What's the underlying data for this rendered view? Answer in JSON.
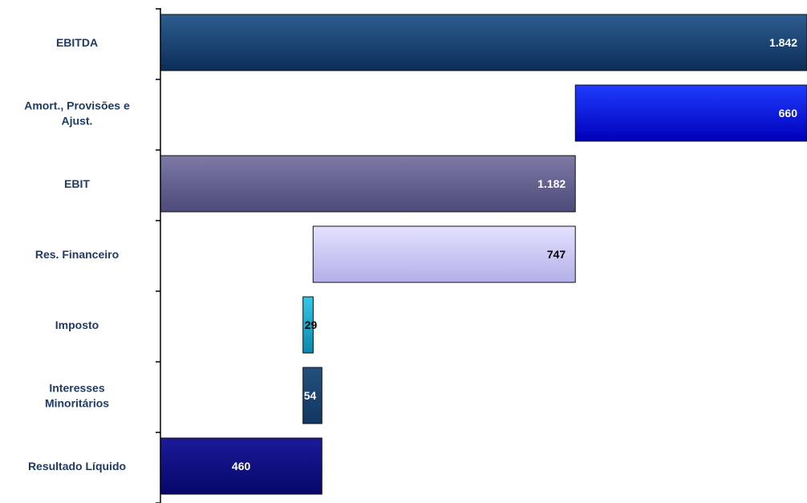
{
  "chart_data": {
    "type": "bar",
    "orientation": "horizontal",
    "subtype": "waterfall",
    "categories": [
      [
        "EBITDA"
      ],
      [
        "Amort., Provisões e",
        "Ajust."
      ],
      [
        "EBIT"
      ],
      [
        "Res. Financeiro"
      ],
      [
        "Imposto"
      ],
      [
        "Interesses",
        "Minoritários"
      ],
      [
        "Resultado Líquido"
      ]
    ],
    "values": [
      1842,
      660,
      1182,
      747,
      29,
      54,
      460
    ],
    "value_labels": [
      "1.842",
      "660",
      "1.182",
      "747",
      "29",
      "54",
      "460"
    ],
    "bar_start": [
      0,
      1182,
      0,
      435,
      406,
      406,
      0
    ],
    "bar_end": [
      1842,
      1842,
      1182,
      1182,
      435,
      460,
      460
    ],
    "bar_colors": [
      {
        "light": "#2d5d91",
        "dark": "#0c2d57"
      },
      {
        "light": "#1f3cff",
        "dark": "#0000b8"
      },
      {
        "light": "#7d7aa6",
        "dark": "#4c4a78"
      },
      {
        "light": "#e4e2ff",
        "dark": "#b3afe9"
      },
      {
        "light": "#35c6e8",
        "dark": "#0a87ae"
      },
      {
        "light": "#24507d",
        "dark": "#123760"
      },
      {
        "light": "#1c1a99",
        "dark": "#06066a"
      }
    ],
    "label_colors": [
      "#ffffff",
      "#ffffff",
      "#ffffff",
      "#000000",
      "#000000",
      "#ffffff",
      "#ffffff"
    ],
    "xlim": [
      0,
      1842
    ],
    "grid": false,
    "legend": "none",
    "title": "",
    "xlabel": "",
    "ylabel": ""
  }
}
